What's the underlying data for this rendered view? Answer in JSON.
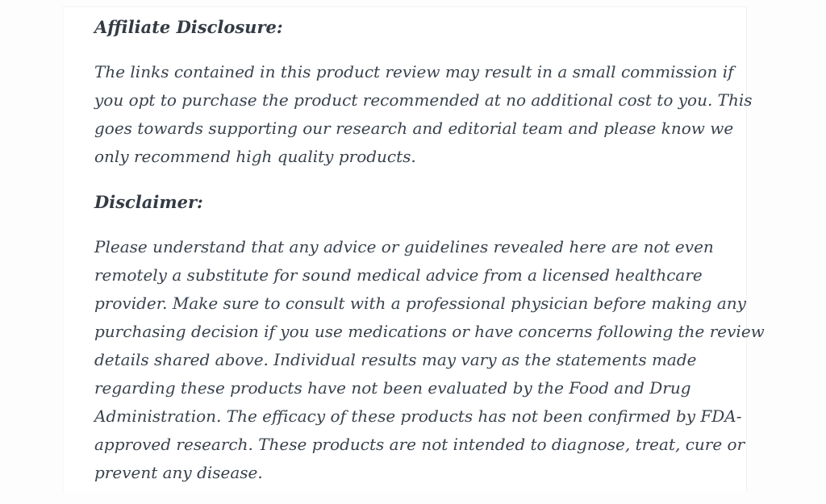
{
  "page": {
    "background_color": "#fdfdfd",
    "card_background_color": "#ffffff",
    "body_text_color": "#3a424d",
    "heading_text_color": "#343b44"
  },
  "article": {
    "sections": [
      {
        "heading": "Affiliate Disclosure:",
        "lines": [
          "The links contained in this product review may result in a small commission if",
          "you opt to purchase the product recommended at no additional cost to you. This",
          "goes towards supporting our research and editorial team and please know we",
          "only recommend high quality products."
        ]
      },
      {
        "heading": "Disclaimer:",
        "lines": [
          "Please understand that any advice or guidelines revealed here are not even",
          "remotely a substitute for sound medical advice from a licensed healthcare",
          "provider. Make sure to consult with a professional physician before making any",
          "purchasing decision if you use medications or have concerns following the review",
          "details shared above. Individual results may vary as the statements made",
          "regarding these products have not been evaluated by the Food and Drug",
          "Administration. The efficacy of these products has not been confirmed by FDA-",
          "approved research. These products are not intended to diagnose, treat, cure or",
          "prevent any disease."
        ]
      }
    ]
  }
}
